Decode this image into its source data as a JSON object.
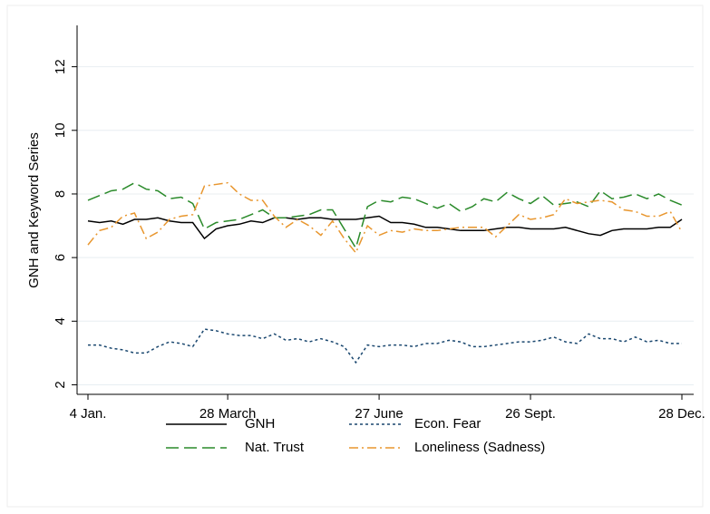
{
  "chart_data": {
    "type": "line",
    "y_label": "GNH and Keyword Series",
    "categories": [
      "4 Jan.",
      null,
      null,
      null,
      null,
      null,
      null,
      null,
      null,
      null,
      null,
      null,
      "28 March",
      null,
      null,
      null,
      null,
      null,
      null,
      null,
      null,
      null,
      null,
      null,
      null,
      "27 June",
      null,
      null,
      null,
      null,
      null,
      null,
      null,
      null,
      null,
      null,
      null,
      null,
      "26 Sept.",
      null,
      null,
      null,
      null,
      null,
      null,
      null,
      null,
      null,
      null,
      null,
      null,
      "28 Dec."
    ],
    "series": [
      {
        "name": "GNH",
        "color": "#000000",
        "dash": "solid",
        "values": [
          7.15,
          7.1,
          7.15,
          7.05,
          7.2,
          7.2,
          7.25,
          7.15,
          7.1,
          7.1,
          6.6,
          6.9,
          7.0,
          7.05,
          7.15,
          7.1,
          7.25,
          7.25,
          7.2,
          7.25,
          7.25,
          7.2,
          7.2,
          7.2,
          7.25,
          7.3,
          7.1,
          7.1,
          7.05,
          6.95,
          6.95,
          6.9,
          6.85,
          6.85,
          6.85,
          6.9,
          6.95,
          6.95,
          6.9,
          6.9,
          6.9,
          6.95,
          6.85,
          6.75,
          6.7,
          6.85,
          6.9,
          6.9,
          6.9,
          6.95,
          6.95,
          7.2
        ]
      },
      {
        "name": "Econ. Fear",
        "color": "#1a476f",
        "dash": "short",
        "values": [
          3.25,
          3.25,
          3.15,
          3.1,
          3.0,
          3.0,
          3.2,
          3.35,
          3.3,
          3.2,
          3.75,
          3.7,
          3.6,
          3.55,
          3.55,
          3.45,
          3.6,
          3.4,
          3.45,
          3.35,
          3.45,
          3.35,
          3.2,
          2.7,
          3.25,
          3.2,
          3.25,
          3.25,
          3.2,
          3.3,
          3.3,
          3.4,
          3.35,
          3.2,
          3.2,
          3.25,
          3.3,
          3.35,
          3.35,
          3.4,
          3.5,
          3.35,
          3.3,
          3.6,
          3.45,
          3.45,
          3.35,
          3.5,
          3.35,
          3.4,
          3.3,
          3.3
        ]
      },
      {
        "name": "Nat. Trust",
        "color": "#2a8a2a",
        "dash": "long",
        "values": [
          7.8,
          7.95,
          8.1,
          8.15,
          8.35,
          8.15,
          8.1,
          7.85,
          7.9,
          7.7,
          6.9,
          7.1,
          7.15,
          7.2,
          7.35,
          7.5,
          7.25,
          7.25,
          7.3,
          7.35,
          7.5,
          7.5,
          6.9,
          6.3,
          7.6,
          7.8,
          7.75,
          7.9,
          7.85,
          7.7,
          7.55,
          7.7,
          7.45,
          7.6,
          7.85,
          7.75,
          8.05,
          7.85,
          7.7,
          7.95,
          7.65,
          7.7,
          7.75,
          7.6,
          8.1,
          7.85,
          7.9,
          8.0,
          7.85,
          8.0,
          7.8,
          7.65
        ]
      },
      {
        "name": "Loneliness (Sadness)",
        "color": "#e8962e",
        "dash": "dashdot",
        "values": [
          6.4,
          6.85,
          6.95,
          7.3,
          7.4,
          6.6,
          6.8,
          7.2,
          7.3,
          7.35,
          8.25,
          8.3,
          8.35,
          8.0,
          7.8,
          7.8,
          7.3,
          6.95,
          7.2,
          7.0,
          6.7,
          7.15,
          6.6,
          6.15,
          7.0,
          6.7,
          6.85,
          6.8,
          6.9,
          6.85,
          6.85,
          6.9,
          6.95,
          6.95,
          6.95,
          6.65,
          7.0,
          7.35,
          7.2,
          7.25,
          7.35,
          7.85,
          7.7,
          7.75,
          7.8,
          7.75,
          7.5,
          7.45,
          7.3,
          7.3,
          7.45,
          6.8
        ]
      }
    ],
    "ylim": [
      1.7,
      13.3
    ],
    "yticks": [
      2,
      4,
      6,
      8,
      10,
      12
    ],
    "grid": true
  }
}
